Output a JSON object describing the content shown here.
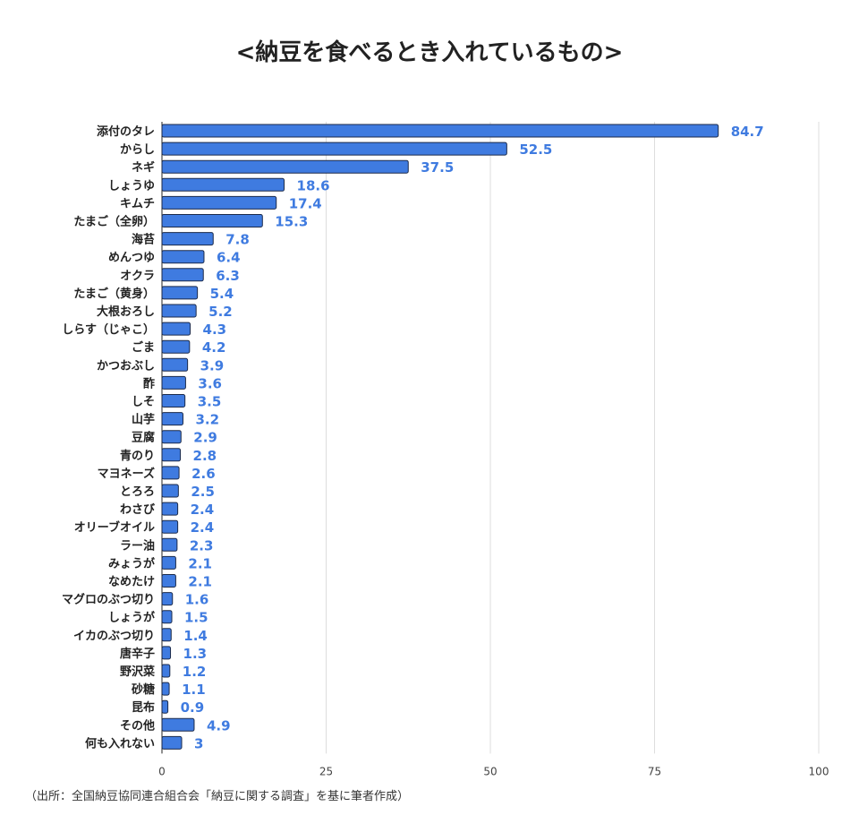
{
  "title": "<納豆を食べるとき入れているもの>",
  "source": "（出所：全国納豆協同連合組合会「納豆に関する調査」を基に筆者作成）",
  "colors": {
    "bar": "#3f7be0",
    "bar_stroke": "#1b2a4a",
    "value_label": "#3f7be0",
    "grid": "#dddddd",
    "axis": "#222222",
    "category_label": "#222222",
    "tick_label": "#444444"
  },
  "chart_data": {
    "type": "bar",
    "orientation": "horizontal",
    "title": "<納豆を食べるとき入れているもの>",
    "categories": [
      "添付のタレ",
      "からし",
      "ネギ",
      "しょうゆ",
      "キムチ",
      "たまご（全卵）",
      "海苔",
      "めんつゆ",
      "オクラ",
      "たまご（黄身）",
      "大根おろし",
      "しらす（じゃこ）",
      "ごま",
      "かつおぶし",
      "酢",
      "しそ",
      "山芋",
      "豆腐",
      "青のり",
      "マヨネーズ",
      "とろろ",
      "わさび",
      "オリーブオイル",
      "ラー油",
      "みょうが",
      "なめたけ",
      "マグロのぶつ切り",
      "しょうが",
      "イカのぶつ切り",
      "唐辛子",
      "野沢菜",
      "砂糖",
      "昆布",
      "その他",
      "何も入れない"
    ],
    "values": [
      84.7,
      52.5,
      37.5,
      18.6,
      17.4,
      15.3,
      7.8,
      6.4,
      6.3,
      5.4,
      5.2,
      4.3,
      4.2,
      3.9,
      3.6,
      3.5,
      3.2,
      2.9,
      2.8,
      2.6,
      2.5,
      2.4,
      2.4,
      2.3,
      2.1,
      2.1,
      1.6,
      1.5,
      1.4,
      1.3,
      1.2,
      1.1,
      0.9,
      4.9,
      3
    ],
    "value_labels": [
      "84.7",
      "52.5",
      "37.5",
      "18.6",
      "17.4",
      "15.3",
      "7.8",
      "6.4",
      "6.3",
      "5.4",
      "5.2",
      "4.3",
      "4.2",
      "3.9",
      "3.6",
      "3.5",
      "3.2",
      "2.9",
      "2.8",
      "2.6",
      "2.5",
      "2.4",
      "2.4",
      "2.3",
      "2.1",
      "2.1",
      "1.6",
      "1.5",
      "1.4",
      "1.3",
      "1.2",
      "1.1",
      "0.9",
      "4.9",
      "3"
    ],
    "xlim": [
      0,
      100
    ],
    "x_ticks": [
      0,
      25,
      50,
      75,
      100
    ],
    "xlabel": "",
    "ylabel": "",
    "grid": true,
    "legend": "none"
  }
}
